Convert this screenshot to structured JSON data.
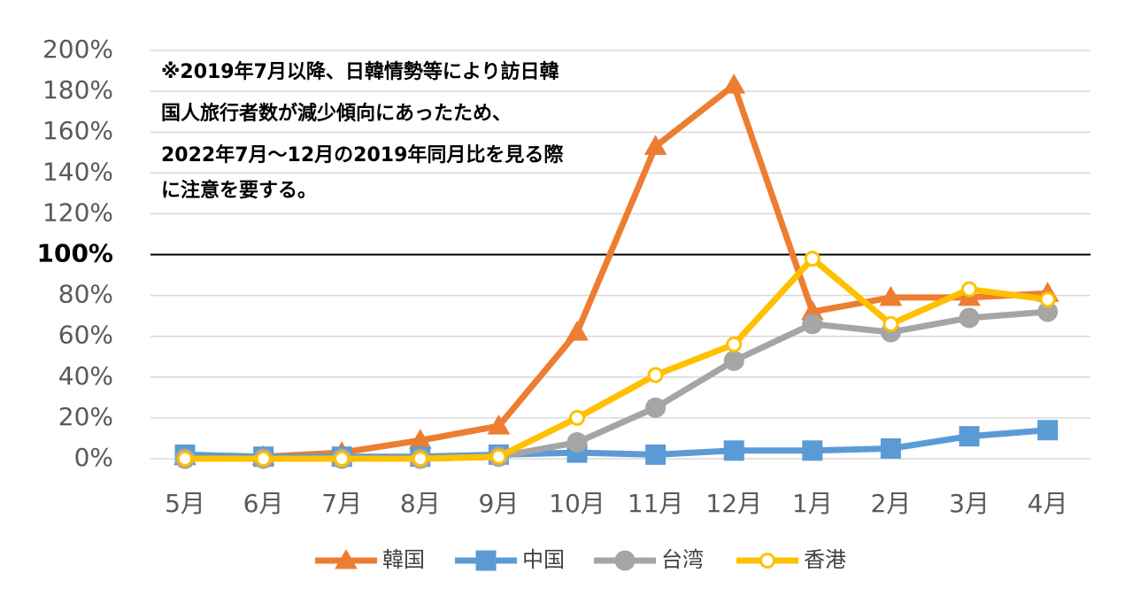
{
  "chart_data": {
    "type": "line",
    "categories": [
      "5月",
      "6月",
      "7月",
      "8月",
      "9月",
      "10月",
      "11月",
      "12月",
      "1月",
      "2月",
      "3月",
      "4月"
    ],
    "y_ticks": [
      "0%",
      "20%",
      "40%",
      "60%",
      "80%",
      "100%",
      "120%",
      "140%",
      "160%",
      "180%",
      "200%"
    ],
    "ylim": [
      0,
      200
    ],
    "reference_line": {
      "value": 100,
      "label": "100%"
    },
    "grid": true,
    "legend_position": "bottom",
    "annotation": [
      "※2019年7月以降、日韓情勢等により訪日韓",
      "国人旅行者数が減少傾向にあったため、",
      "2022年7月～12月の2019年同月比を見る際",
      "に注意を要する。"
    ],
    "series": [
      {
        "name": "韓国",
        "color": "#ED7D31",
        "marker": "triangle",
        "values": [
          1,
          1,
          3,
          9,
          16,
          62,
          153,
          183,
          72,
          79,
          79,
          81
        ]
      },
      {
        "name": "中国",
        "color": "#5B9BD5",
        "marker": "square",
        "values": [
          2,
          1,
          1,
          1,
          2,
          3,
          2,
          4,
          4,
          5,
          11,
          14
        ]
      },
      {
        "name": "台湾",
        "color": "#A5A5A5",
        "marker": "circle",
        "values": [
          0,
          0,
          0,
          0,
          1,
          8,
          25,
          48,
          66,
          62,
          69,
          72
        ]
      },
      {
        "name": "香港",
        "color": "#FFC000",
        "marker": "open-circle",
        "values": [
          0,
          0,
          0,
          0,
          1,
          20,
          41,
          56,
          98,
          66,
          83,
          78
        ]
      }
    ]
  }
}
